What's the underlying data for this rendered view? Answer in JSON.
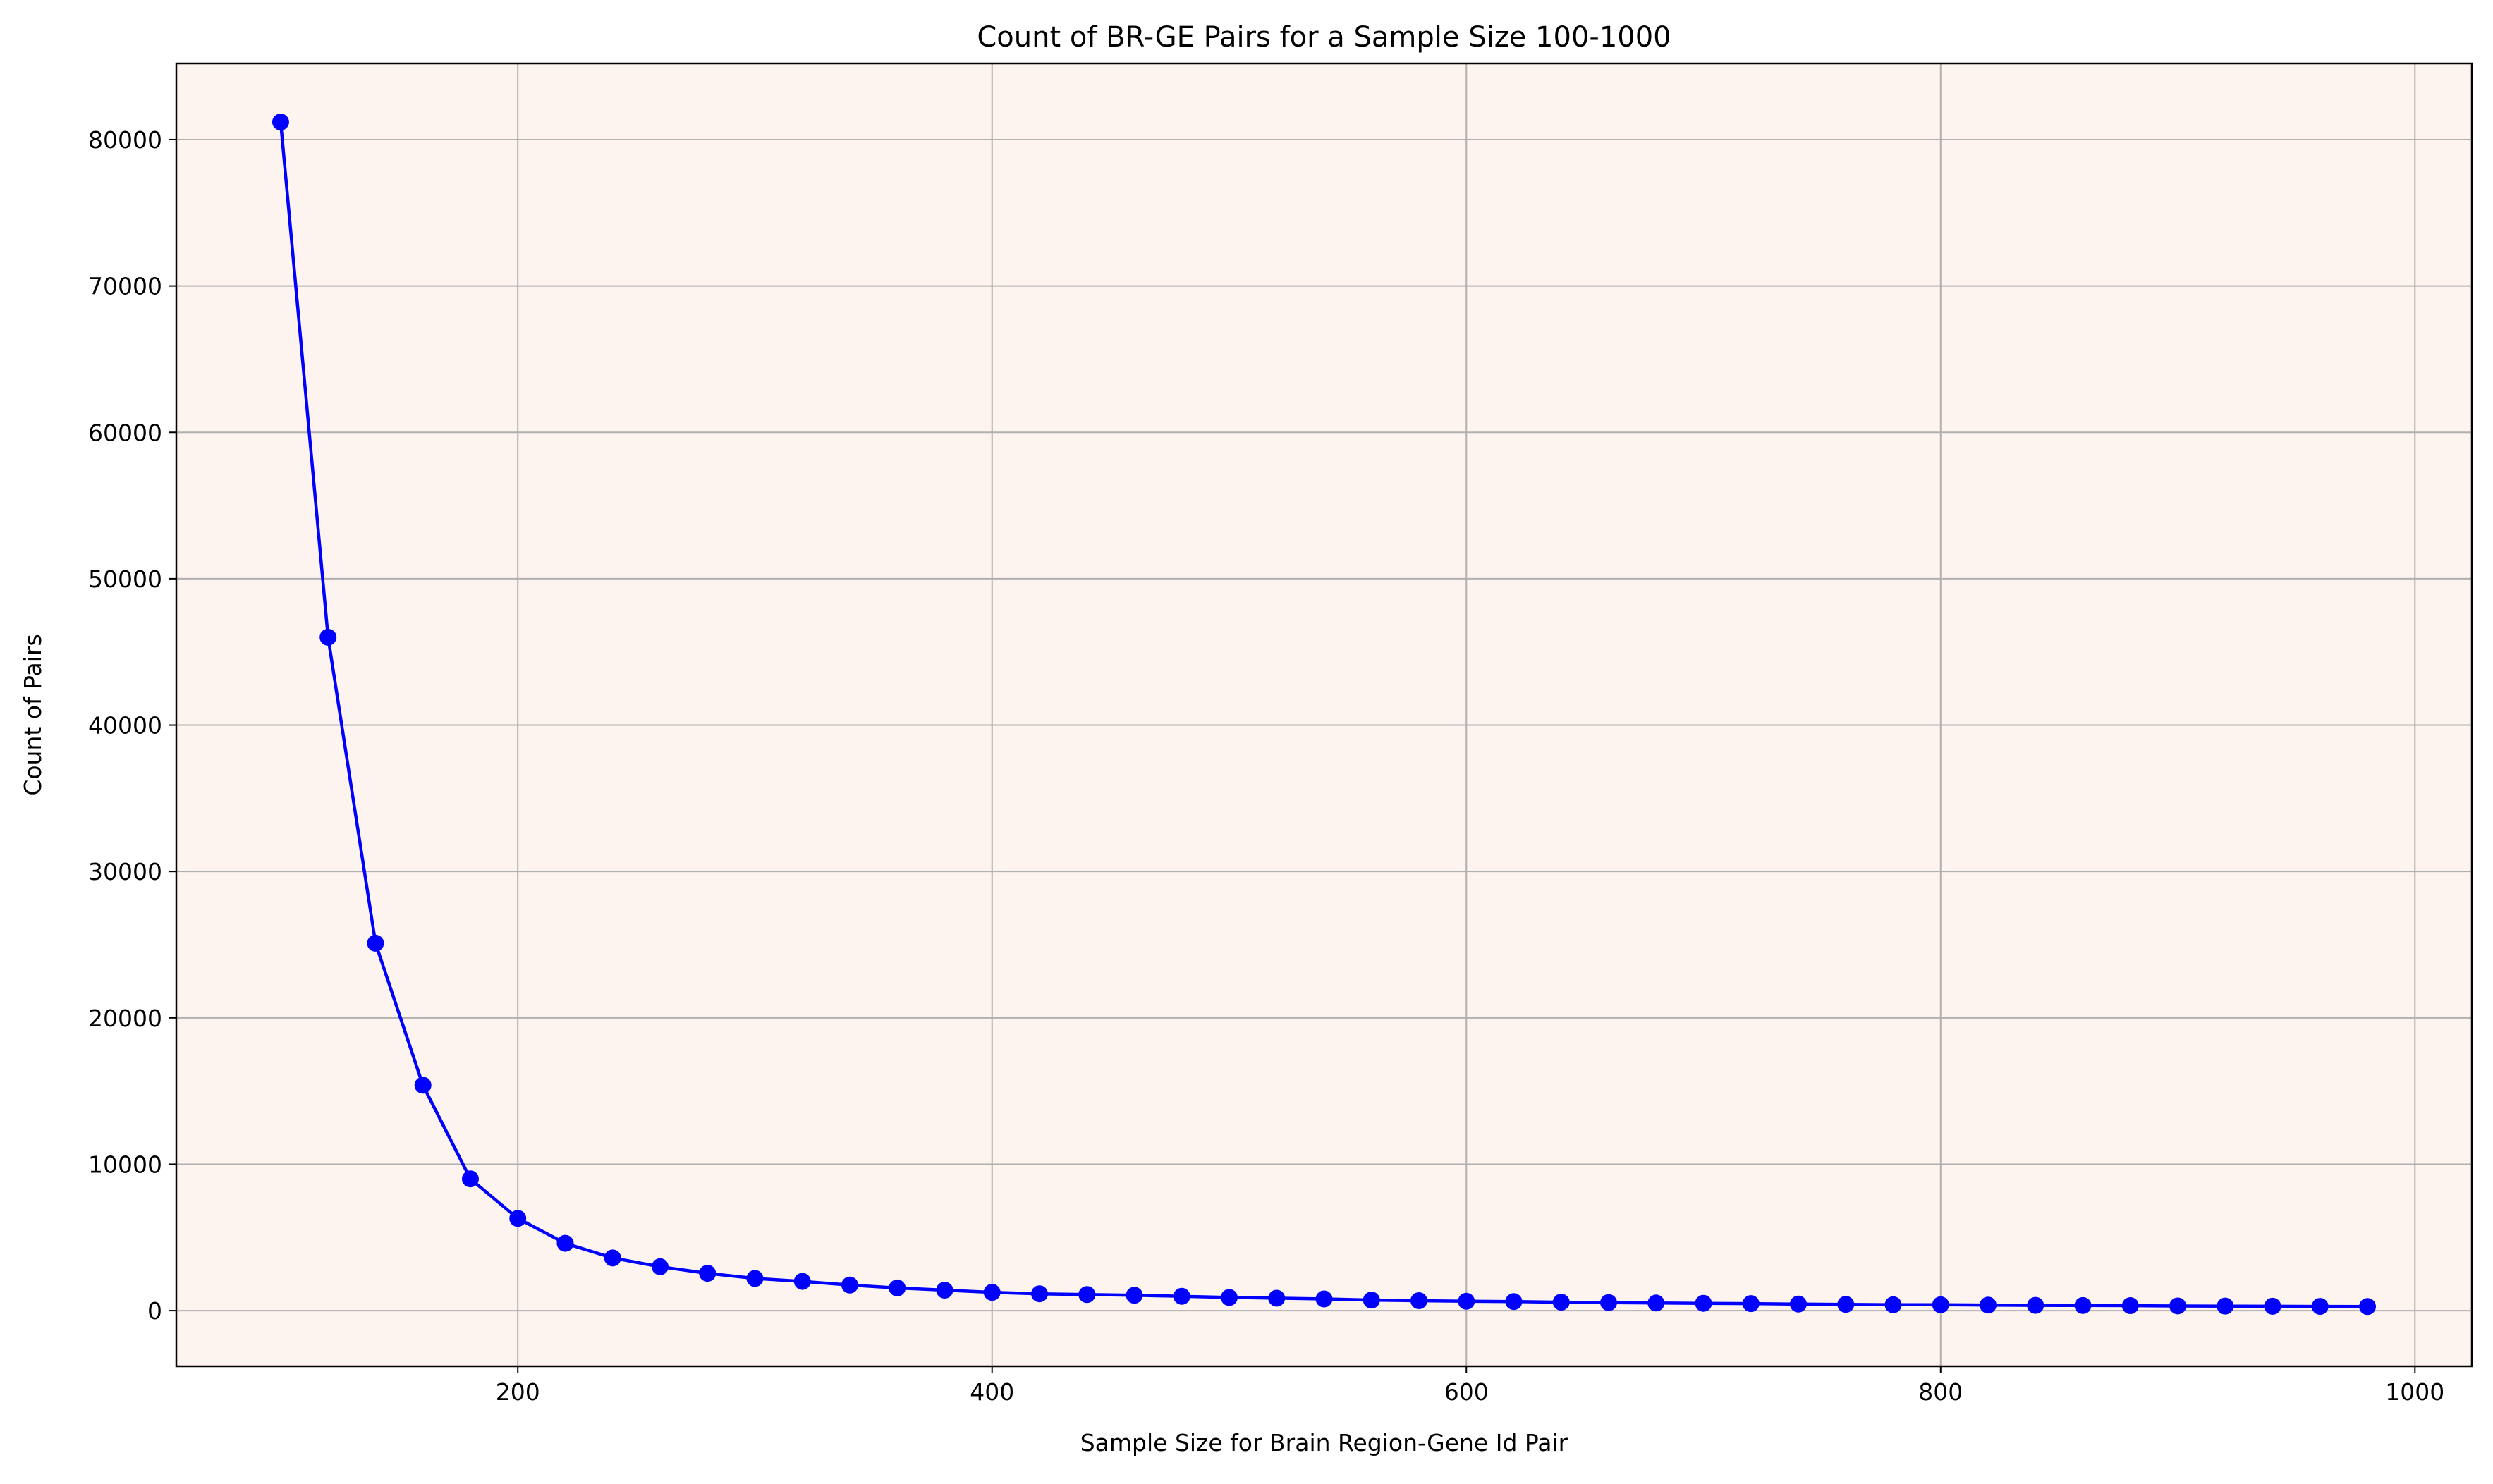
{
  "chart_data": {
    "type": "line",
    "title": "Count of BR-GE Pairs for a Sample Size 100-1000",
    "xlabel": "Sample Size for Brain Region-Gene Id Pair",
    "ylabel": "Count of Pairs",
    "xlim": [
      56,
      1024
    ],
    "ylim": [
      -3800,
      85200
    ],
    "xticks": [
      200,
      400,
      600,
      800,
      1000
    ],
    "yticks": [
      0,
      10000,
      20000,
      30000,
      40000,
      50000,
      60000,
      70000,
      80000
    ],
    "grid": true,
    "plot_background": "#fdf3ef",
    "series": [
      {
        "color": "#0000ff",
        "marker": "circle",
        "x": [
          100,
          120,
          140,
          160,
          180,
          200,
          220,
          240,
          260,
          280,
          300,
          320,
          340,
          360,
          380,
          400,
          420,
          440,
          460,
          480,
          500,
          520,
          540,
          560,
          580,
          600,
          620,
          640,
          660,
          680,
          700,
          720,
          740,
          760,
          780,
          800,
          820,
          840,
          860,
          880,
          900,
          920,
          940,
          960,
          980
        ],
        "values": [
          81200,
          46000,
          25100,
          15400,
          9000,
          6300,
          4600,
          3600,
          3000,
          2550,
          2200,
          2000,
          1750,
          1550,
          1400,
          1250,
          1150,
          1100,
          1050,
          980,
          900,
          850,
          800,
          720,
          680,
          640,
          620,
          580,
          550,
          520,
          500,
          480,
          450,
          430,
          400,
          400,
          380,
          360,
          350,
          340,
          320,
          310,
          300,
          290,
          280
        ]
      }
    ]
  }
}
